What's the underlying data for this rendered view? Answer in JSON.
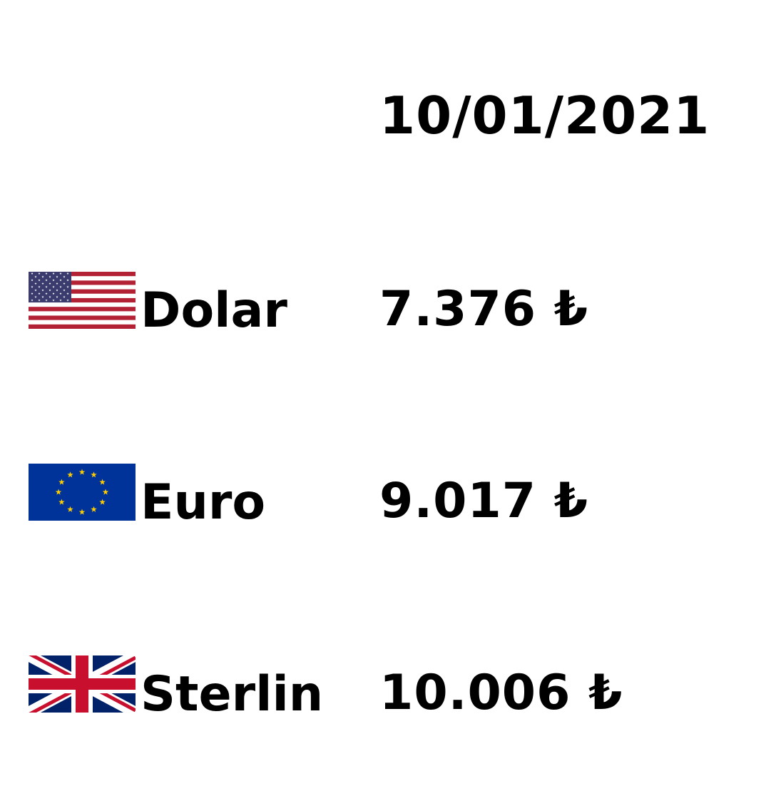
{
  "date": "10/01/2021",
  "currencies": [
    {
      "name": "Dolar",
      "rate": "7.376 ₺",
      "flag_icon": "us-flag-icon"
    },
    {
      "name": "Euro",
      "rate": "9.017 ₺",
      "flag_icon": "eu-flag-icon"
    },
    {
      "name": "Sterlin",
      "rate": "10.006 ₺",
      "flag_icon": "uk-flag-icon"
    }
  ],
  "colors": {
    "text": "#000000",
    "background": "#ffffff",
    "us_red": "#B22234",
    "us_blue": "#3C3B6E",
    "eu_blue": "#003399",
    "eu_gold": "#FFCC00",
    "uk_blue": "#012169",
    "uk_red": "#C8102E"
  }
}
